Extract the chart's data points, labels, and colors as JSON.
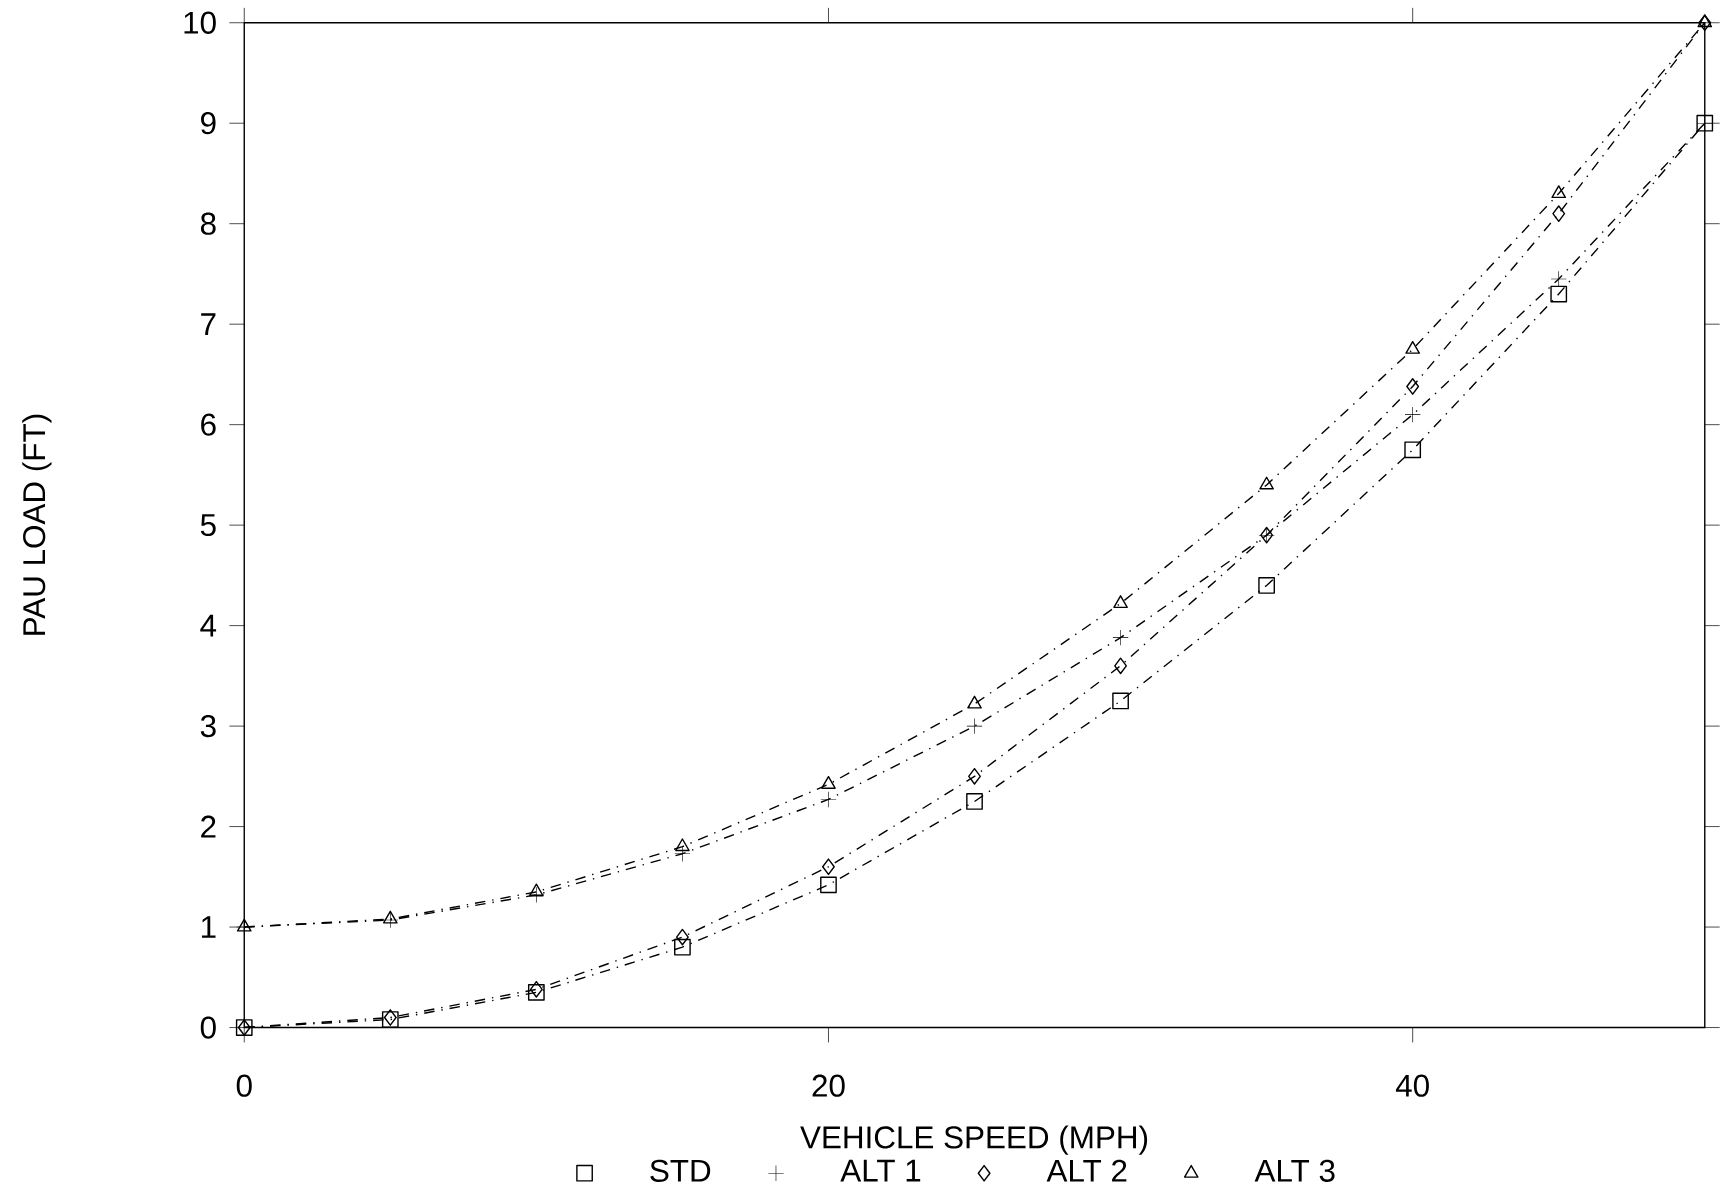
{
  "chart_data": {
    "type": "line",
    "xlabel": "VEHICLE SPEED (MPH)",
    "ylabel": "PAU LOAD (FT)",
    "x": [
      0,
      5,
      10,
      15,
      20,
      25,
      30,
      35,
      40,
      45,
      50
    ],
    "xlim": [
      0,
      50
    ],
    "xticks": [
      0,
      20,
      40
    ],
    "ylim": [
      0,
      10
    ],
    "yticks": [
      0,
      1,
      2,
      3,
      4,
      5,
      6,
      7,
      8,
      9,
      10
    ],
    "grid": false,
    "legend": "bottom",
    "line_style": "dashed",
    "series": [
      {
        "name": "STD",
        "color": "#000000",
        "marker": "square",
        "values": [
          0,
          0.08,
          0.35,
          0.8,
          1.42,
          2.25,
          3.25,
          4.4,
          5.75,
          7.3,
          9.0
        ]
      },
      {
        "name": "ALT 1",
        "color": "#000000",
        "marker": "cross",
        "values": [
          1.0,
          1.07,
          1.32,
          1.73,
          2.27,
          3.0,
          3.88,
          4.9,
          6.1,
          7.45,
          9.0
        ]
      },
      {
        "name": "ALT 2",
        "color": "#000000",
        "marker": "diamond",
        "values": [
          0,
          0.1,
          0.38,
          0.9,
          1.6,
          2.5,
          3.6,
          4.9,
          6.38,
          8.1,
          10.0
        ]
      },
      {
        "name": "ALT 3",
        "color": "#000000",
        "marker": "triangle",
        "values": [
          1.0,
          1.08,
          1.35,
          1.8,
          2.42,
          3.22,
          4.22,
          5.4,
          6.75,
          8.3,
          10.0
        ]
      }
    ]
  }
}
